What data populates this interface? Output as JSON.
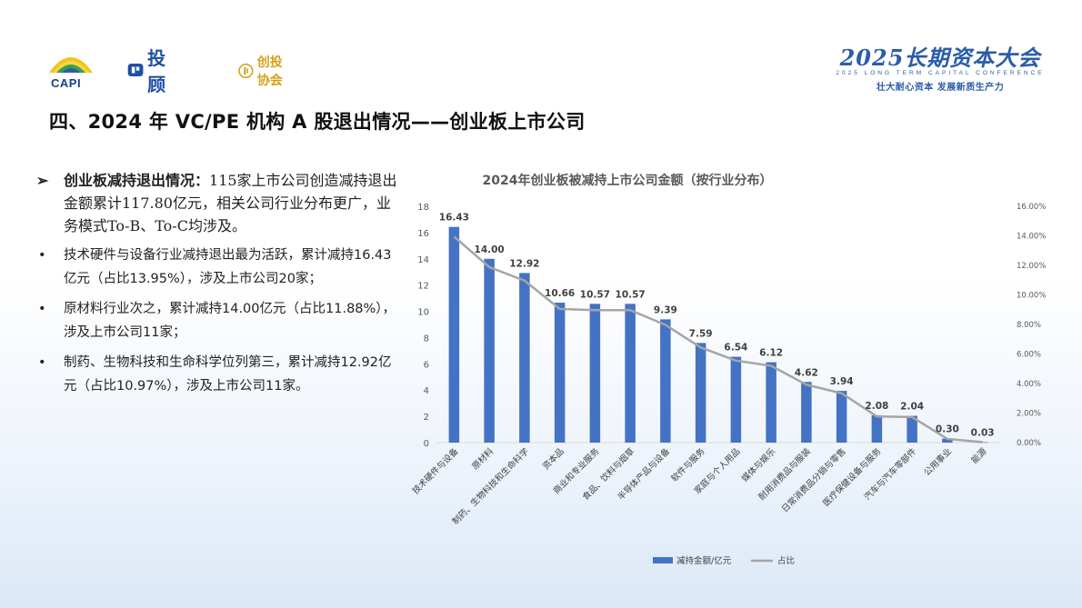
{
  "header": {
    "logos": {
      "capi_text": "CAPI",
      "tougu_text": "投顾",
      "chuangtou_text": "创投协会"
    },
    "conference": {
      "title": "2025长期资本大会",
      "english": "2025 LONG TERM CAPITAL CONFERENCE",
      "slogan": "壮大耐心资本 发展新质生产力"
    }
  },
  "page_title": "四、2024 年 VC/PE 机构 A 股退出情况——创业板上市公司",
  "text_panel": {
    "lead_arrow": "➢",
    "lead_bold": "创业板减持退出情况：",
    "lead_text": "115家上市公司创造减持退出金额累计117.80亿元，相关公司行业分布更广，业务模式To-B、To-C均涉及。",
    "bullet_symbol": "•",
    "bullets": [
      "技术硬件与设备行业减持退出最为活跃，累计减持16.43亿元（占比13.95%），涉及上市公司20家；",
      "原材料行业次之，累计减持14.00亿元（占比11.88%），涉及上市公司11家；",
      "制药、生物科技和生命科学位列第三，累计减持12.92亿元（占比10.97%），涉及上市公司11家。"
    ]
  },
  "chart_data": {
    "type": "bar",
    "title": "2024年创业板被减持上市公司金额（按行业分布）",
    "categories": [
      "技术硬件与设备",
      "原材料",
      "制药、生物科技和生命科学",
      "资本品",
      "商业和专业服务",
      "食品、饮料与烟草",
      "半导体产品与设备",
      "软件与服务",
      "家庭与个人用品",
      "媒体与娱乐",
      "耐用消费品与服装",
      "日常消费品分销与零售",
      "医疗保健设备与服务",
      "汽车与汽车零部件",
      "公用事业",
      "能源"
    ],
    "series": [
      {
        "name": "减持金额/亿元",
        "type": "bar",
        "color": "#4472c4",
        "axis": "left",
        "values": [
          16.43,
          14.0,
          12.92,
          10.66,
          10.57,
          10.57,
          9.39,
          7.59,
          6.54,
          6.12,
          4.62,
          3.94,
          2.08,
          2.04,
          0.3,
          0.03
        ],
        "labels": [
          "16.43",
          "14.00",
          "12.92",
          "10.66",
          "10.57",
          "10.57",
          "9.39",
          "7.59",
          "6.54",
          "6.12",
          "4.62",
          "3.94",
          "2.08",
          "2.04",
          "0.30",
          "0.03"
        ]
      },
      {
        "name": "占比",
        "type": "line",
        "color": "#a5a5a5",
        "axis": "right",
        "values": [
          13.95,
          11.88,
          10.97,
          9.05,
          8.97,
          8.97,
          7.97,
          6.44,
          5.55,
          5.2,
          3.92,
          3.34,
          1.77,
          1.73,
          0.25,
          0.03
        ]
      }
    ],
    "ylim_left": [
      0,
      18
    ],
    "yticks_left": [
      "0",
      "2",
      "4",
      "6",
      "8",
      "10",
      "12",
      "14",
      "16",
      "18"
    ],
    "ylim_right": [
      0,
      16
    ],
    "yticks_right": [
      "0.00%",
      "2.00%",
      "4.00%",
      "6.00%",
      "8.00%",
      "10.00%",
      "12.00%",
      "14.00%",
      "16.00%"
    ],
    "grid": false,
    "legend_position": "bottom"
  }
}
